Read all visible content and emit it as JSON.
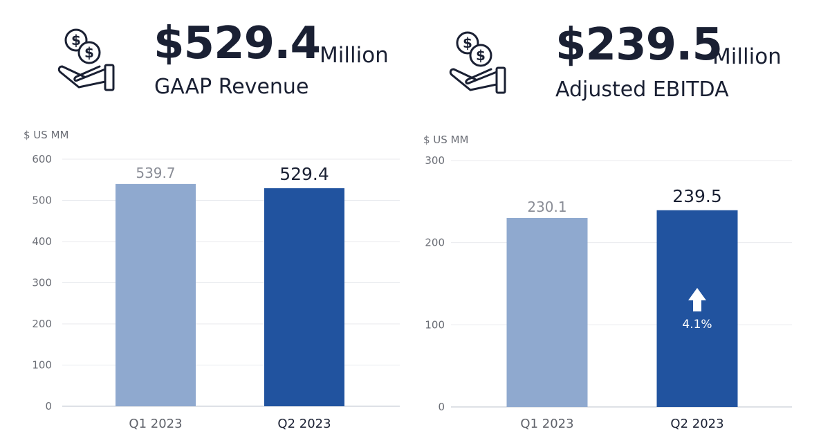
{
  "kpis": [
    {
      "amount": "$529.4",
      "unit": "Million",
      "label": "GAAP Revenue",
      "icon": "hand-coins-icon"
    },
    {
      "amount": "$239.5",
      "unit": "Million",
      "label": "Adjusted EBITDA",
      "icon": "hand-coins-icon"
    }
  ],
  "colors": {
    "prior": "#8fa9cf",
    "current": "#21539f",
    "text_dark": "#1a2033",
    "text_gray": "#8a8d96",
    "grid": "#e8eaee"
  },
  "chart_data": [
    {
      "type": "bar",
      "title": "GAAP Revenue",
      "ylabel": "$ US MM",
      "categories": [
        "Q1 2023",
        "Q2 2023"
      ],
      "values": [
        539.7,
        529.4
      ],
      "value_labels": [
        "539.7",
        "529.4"
      ],
      "ylim": [
        0,
        600
      ],
      "yticks": [
        0,
        100,
        200,
        300,
        400,
        500,
        600
      ],
      "ytick_labels": [
        "0",
        "100",
        "200",
        "300",
        "400",
        "500",
        "600"
      ],
      "grid": true
    },
    {
      "type": "bar",
      "title": "Adjusted EBITDA",
      "ylabel": "$ US MM",
      "categories": [
        "Q1 2023",
        "Q2 2023"
      ],
      "values": [
        230.1,
        239.5
      ],
      "value_labels": [
        "230.1",
        "239.5"
      ],
      "ylim": [
        0,
        300
      ],
      "yticks": [
        0,
        100,
        200,
        300
      ],
      "ytick_labels": [
        "0",
        "100",
        "200",
        "300"
      ],
      "grid": true,
      "annotation": {
        "category": "Q2 2023",
        "text": "4.1%",
        "direction": "up"
      }
    }
  ]
}
